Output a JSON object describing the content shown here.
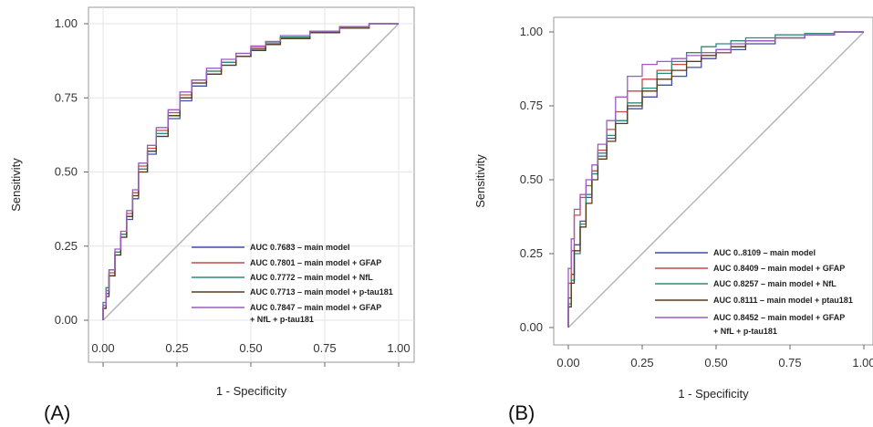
{
  "chart_data": [
    {
      "type": "line",
      "panel_label": "(A)",
      "xlabel": "1 - Specificity",
      "ylabel": "Sensitivity",
      "xlim": [
        0,
        1
      ],
      "ylim": [
        0,
        1
      ],
      "xticks": [
        "0.00",
        "0.25",
        "0.50",
        "0.75",
        "1.00"
      ],
      "yticks": [
        "0.00",
        "0.25",
        "0.50",
        "0.75",
        "1.00"
      ],
      "grid": true,
      "reference_line": true,
      "legend_position": "bottom-right",
      "series": [
        {
          "name": "AUC 0.7683 – main model",
          "color": "#3f4fa8",
          "x": [
            0,
            0.01,
            0.02,
            0.04,
            0.06,
            0.08,
            0.1,
            0.12,
            0.15,
            0.18,
            0.22,
            0.26,
            0.3,
            0.35,
            0.4,
            0.45,
            0.5,
            0.55,
            0.6,
            0.7,
            0.8,
            0.9,
            1.0
          ],
          "y": [
            0,
            0.04,
            0.09,
            0.15,
            0.22,
            0.28,
            0.34,
            0.41,
            0.5,
            0.56,
            0.62,
            0.68,
            0.74,
            0.79,
            0.83,
            0.86,
            0.89,
            0.91,
            0.93,
            0.95,
            0.97,
            0.985,
            1.0
          ]
        },
        {
          "name": "AUC 0.7801 – main model + GFAP",
          "color": "#c44a4a",
          "x": [
            0,
            0.01,
            0.02,
            0.04,
            0.06,
            0.08,
            0.1,
            0.12,
            0.15,
            0.18,
            0.22,
            0.26,
            0.3,
            0.35,
            0.4,
            0.45,
            0.5,
            0.55,
            0.6,
            0.7,
            0.8,
            0.9,
            1.0
          ],
          "y": [
            0,
            0.05,
            0.1,
            0.16,
            0.23,
            0.29,
            0.36,
            0.43,
            0.52,
            0.58,
            0.64,
            0.7,
            0.76,
            0.81,
            0.84,
            0.87,
            0.9,
            0.92,
            0.94,
            0.955,
            0.975,
            0.99,
            1.0
          ]
        },
        {
          "name": "AUC 0.7772 – main model + NfL",
          "color": "#2e8b7a",
          "x": [
            0,
            0.01,
            0.02,
            0.04,
            0.06,
            0.08,
            0.1,
            0.12,
            0.15,
            0.18,
            0.22,
            0.26,
            0.3,
            0.35,
            0.4,
            0.45,
            0.5,
            0.55,
            0.6,
            0.7,
            0.8,
            0.9,
            1.0
          ],
          "y": [
            0,
            0.06,
            0.11,
            0.17,
            0.23,
            0.29,
            0.35,
            0.42,
            0.51,
            0.57,
            0.63,
            0.69,
            0.75,
            0.8,
            0.84,
            0.87,
            0.89,
            0.915,
            0.935,
            0.955,
            0.975,
            0.99,
            1.0
          ]
        },
        {
          "name": "AUC 0.7713 – main model + p-tau181",
          "color": "#5a3a1a",
          "x": [
            0,
            0.01,
            0.02,
            0.04,
            0.06,
            0.08,
            0.1,
            0.12,
            0.15,
            0.18,
            0.22,
            0.26,
            0.3,
            0.35,
            0.4,
            0.45,
            0.5,
            0.55,
            0.6,
            0.7,
            0.8,
            0.9,
            1.0
          ],
          "y": [
            0,
            0.04,
            0.08,
            0.15,
            0.22,
            0.28,
            0.35,
            0.42,
            0.5,
            0.57,
            0.62,
            0.69,
            0.75,
            0.8,
            0.83,
            0.86,
            0.89,
            0.91,
            0.93,
            0.95,
            0.97,
            0.985,
            1.0
          ]
        },
        {
          "name": "AUC 0.7847 – main model + GFAP + NfL +  p-tau181",
          "color": "#9a5cc4",
          "x": [
            0,
            0.01,
            0.02,
            0.04,
            0.06,
            0.08,
            0.1,
            0.12,
            0.15,
            0.18,
            0.22,
            0.26,
            0.3,
            0.35,
            0.4,
            0.45,
            0.5,
            0.55,
            0.6,
            0.7,
            0.8,
            0.9,
            1.0
          ],
          "y": [
            0,
            0.05,
            0.1,
            0.17,
            0.24,
            0.3,
            0.37,
            0.44,
            0.53,
            0.59,
            0.65,
            0.71,
            0.77,
            0.81,
            0.85,
            0.88,
            0.9,
            0.925,
            0.94,
            0.96,
            0.975,
            0.99,
            1.0
          ]
        }
      ]
    },
    {
      "type": "line",
      "panel_label": "(B)",
      "xlabel": "1 - Specificity",
      "ylabel": "Sensitivity",
      "xlim": [
        0,
        1
      ],
      "ylim": [
        0,
        1
      ],
      "xticks": [
        "0.00",
        "0.25",
        "0.50",
        "0.75",
        "1.00"
      ],
      "yticks": [
        "0.00",
        "0.25",
        "0.50",
        "0.75",
        "1.00"
      ],
      "grid": false,
      "reference_line": true,
      "legend_position": "bottom-right",
      "series": [
        {
          "name": "AUC 0..8109 – main model",
          "color": "#3f4fa8",
          "x": [
            0,
            0.01,
            0.02,
            0.04,
            0.06,
            0.08,
            0.1,
            0.13,
            0.16,
            0.2,
            0.25,
            0.3,
            0.35,
            0.4,
            0.45,
            0.5,
            0.55,
            0.6,
            0.7,
            0.8,
            0.9,
            1.0
          ],
          "y": [
            0,
            0.1,
            0.18,
            0.28,
            0.36,
            0.44,
            0.52,
            0.58,
            0.64,
            0.7,
            0.74,
            0.78,
            0.82,
            0.85,
            0.88,
            0.91,
            0.93,
            0.94,
            0.96,
            0.98,
            0.99,
            1.0
          ]
        },
        {
          "name": "AUC 0.8409 – main model + GFAP",
          "color": "#c44a4a",
          "x": [
            0,
            0.01,
            0.02,
            0.04,
            0.06,
            0.08,
            0.1,
            0.13,
            0.16,
            0.2,
            0.25,
            0.3,
            0.35,
            0.4,
            0.45,
            0.5,
            0.55,
            0.6,
            0.7,
            0.8,
            0.9,
            1.0
          ],
          "y": [
            0,
            0.15,
            0.26,
            0.38,
            0.44,
            0.48,
            0.53,
            0.6,
            0.67,
            0.73,
            0.8,
            0.84,
            0.87,
            0.89,
            0.9,
            0.92,
            0.93,
            0.95,
            0.97,
            0.98,
            0.99,
            1.0
          ]
        },
        {
          "name": "AUC 0.8257 – main model + NfL",
          "color": "#2e8b7a",
          "x": [
            0,
            0.01,
            0.02,
            0.04,
            0.06,
            0.08,
            0.1,
            0.13,
            0.16,
            0.2,
            0.25,
            0.3,
            0.35,
            0.4,
            0.45,
            0.5,
            0.55,
            0.6,
            0.7,
            0.8,
            0.9,
            1.0
          ],
          "y": [
            0,
            0.08,
            0.16,
            0.25,
            0.35,
            0.45,
            0.52,
            0.59,
            0.65,
            0.7,
            0.76,
            0.81,
            0.86,
            0.9,
            0.93,
            0.95,
            0.96,
            0.97,
            0.98,
            0.99,
            0.995,
            1.0
          ]
        },
        {
          "name": "AUC 0.8111 – main model + ptau181",
          "color": "#5a3a1a",
          "x": [
            0,
            0.01,
            0.02,
            0.04,
            0.06,
            0.08,
            0.1,
            0.13,
            0.16,
            0.2,
            0.25,
            0.3,
            0.35,
            0.4,
            0.45,
            0.5,
            0.55,
            0.6,
            0.7,
            0.8,
            0.9,
            1.0
          ],
          "y": [
            0,
            0.07,
            0.15,
            0.26,
            0.34,
            0.42,
            0.5,
            0.57,
            0.63,
            0.69,
            0.75,
            0.8,
            0.84,
            0.87,
            0.9,
            0.92,
            0.94,
            0.95,
            0.97,
            0.98,
            0.99,
            1.0
          ]
        },
        {
          "name": "AUC 0.8452 – main model + GFAP + NfL + p-tau181",
          "color": "#9a5cc4",
          "x": [
            0,
            0.01,
            0.02,
            0.04,
            0.06,
            0.08,
            0.1,
            0.13,
            0.16,
            0.2,
            0.25,
            0.3,
            0.35,
            0.4,
            0.45,
            0.5,
            0.55,
            0.6,
            0.7,
            0.8,
            0.9,
            1.0
          ],
          "y": [
            0,
            0.2,
            0.3,
            0.4,
            0.45,
            0.5,
            0.55,
            0.62,
            0.7,
            0.78,
            0.85,
            0.89,
            0.9,
            0.91,
            0.92,
            0.93,
            0.94,
            0.96,
            0.97,
            0.98,
            0.99,
            1.0
          ]
        }
      ]
    }
  ]
}
